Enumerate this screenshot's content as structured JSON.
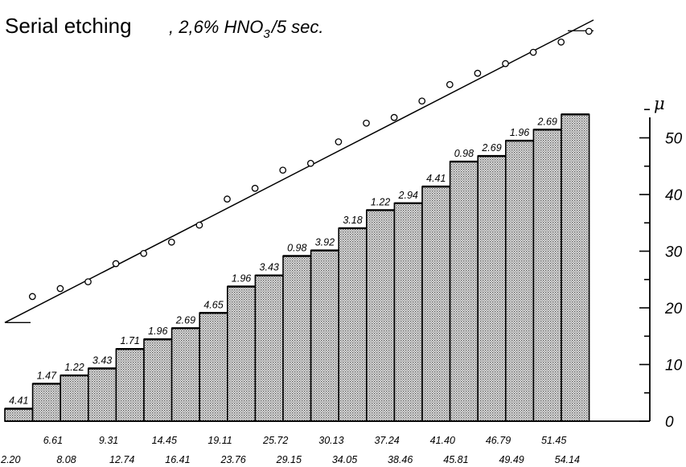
{
  "chart_data": {
    "type": "bar",
    "title": "Serial etching",
    "subtitle": ", 2,6% HNO",
    "subtitle_subscript": "3",
    "subtitle_suffix": "/5 sec.",
    "ylabel": "μ",
    "ylim": [
      0,
      54.14
    ],
    "yticks": [
      "0",
      "10",
      "20",
      "30",
      "40",
      "50"
    ],
    "ytick_values": [
      0,
      10,
      20,
      30,
      40,
      50
    ],
    "grid": false,
    "bar_fill": "#d6d6d6",
    "layer_thickness": [
      "4.41",
      "1.47",
      "1.22",
      "3.43",
      "1.71",
      "1.96",
      "2.69",
      "4.65",
      "1.96",
      "3.43",
      "0.98",
      "3.92",
      "3.18",
      "1.22",
      "2.94",
      "4.41",
      "0.98",
      "2.69",
      "1.96",
      "2.69",
      ""
    ],
    "cumulative_labels": [
      "2.20",
      "6.61",
      "8.08",
      "9.31",
      "12.74",
      "14.45",
      "16.41",
      "19.11",
      "23.76",
      "25.72",
      "29.15",
      "30.13",
      "34.05",
      "37.24",
      "38.46",
      "41.40",
      "45.81",
      "46.79",
      "49.49",
      "51.45",
      "54.14"
    ],
    "values": [
      2.2,
      6.61,
      8.08,
      9.31,
      12.74,
      14.45,
      16.41,
      19.11,
      23.76,
      25.72,
      29.15,
      30.13,
      34.05,
      37.24,
      38.46,
      41.4,
      45.81,
      46.79,
      49.49,
      51.45,
      54.14
    ],
    "circles": [
      22.0,
      23.4,
      24.6,
      27.8,
      29.6,
      31.6,
      34.6,
      39.2,
      41.1,
      44.3,
      45.5,
      49.3,
      52.6,
      53.6,
      56.5,
      59.4,
      61.4,
      63.1,
      65.1,
      66.9,
      68.8
    ],
    "trend_line": {
      "start": 17.4,
      "end": 70.8
    }
  }
}
